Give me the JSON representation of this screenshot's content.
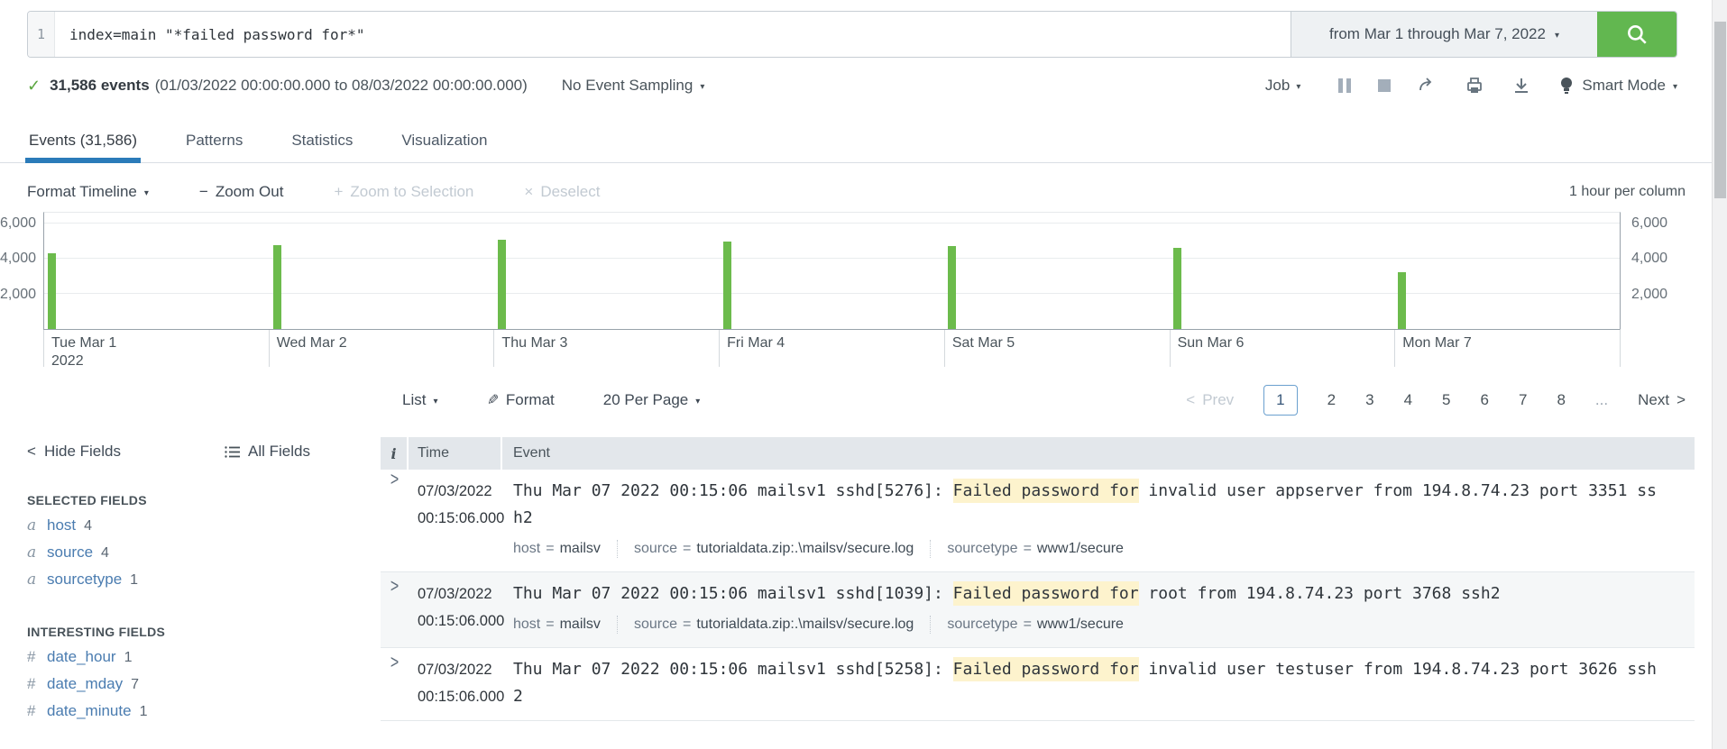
{
  "colors": {
    "green_button": "#62b750",
    "bar_green": "#6cbb4c",
    "tab_underline": "#2b7bb9",
    "link_blue": "#4a7cb0",
    "highlight_yellow": "#fdf3cd"
  },
  "icons": {
    "check": "✓",
    "caret_down": "▾",
    "chevron_left": "<",
    "chevron_right": ">",
    "minus": "−",
    "plus": "+",
    "x": "×",
    "pencil": "✎"
  },
  "search": {
    "line_number": "1",
    "query": "index=main \"*failed password for*\"",
    "time_range_label": "from Mar 1 through Mar 7, 2022"
  },
  "status_bar": {
    "event_count": "31,586 events",
    "time_span": "(01/03/2022 00:00:00.000 to 08/03/2022 00:00:00.000)",
    "sampling_label": "No Event Sampling",
    "job_label": "Job",
    "smart_mode_label": "Smart Mode"
  },
  "tabs": [
    {
      "label": "Events (31,586)",
      "active": true
    },
    {
      "label": "Patterns",
      "active": false
    },
    {
      "label": "Statistics",
      "active": false
    },
    {
      "label": "Visualization",
      "active": false
    }
  ],
  "timeline_controls": {
    "format_timeline": "Format Timeline",
    "zoom_out": "Zoom Out",
    "zoom_to_selection": "Zoom to Selection",
    "deselect": "Deselect",
    "column_scale": "1 hour per column"
  },
  "chart_data": {
    "type": "bar",
    "title": "Events timeline, 1 hour per column",
    "bar_color": "#6cbb4c",
    "ylim": [
      0,
      6610
    ],
    "grid": true,
    "yticks": [
      {
        "value": 2000,
        "label": "2,000"
      },
      {
        "value": 4000,
        "label": "4,000"
      },
      {
        "value": 6000,
        "label": "6,000"
      }
    ],
    "days": [
      {
        "label": "Tue Mar 1",
        "sublabel": "2022",
        "value": 4300
      },
      {
        "label": "Wed Mar 2",
        "value": 4750
      },
      {
        "label": "Thu Mar 3",
        "value": 5050
      },
      {
        "label": "Fri Mar 4",
        "value": 4950
      },
      {
        "label": "Sat Mar 5",
        "value": 4700
      },
      {
        "label": "Sun Mar 6",
        "value": 4600
      },
      {
        "label": "Mon Mar 7",
        "value": 3236
      }
    ]
  },
  "results_toolbar": {
    "list_label": "List",
    "format_label": "Format",
    "per_page_label": "20 Per Page"
  },
  "pagination": {
    "prev_label": "Prev",
    "next_label": "Next",
    "pages": [
      "1",
      "2",
      "3",
      "4",
      "5",
      "6",
      "7",
      "8"
    ],
    "ellipsis": "...",
    "active_page": "1"
  },
  "fields_panel": {
    "hide_fields_label": "Hide Fields",
    "all_fields_label": "All Fields",
    "selected_header": "SELECTED FIELDS",
    "selected": [
      {
        "glyph": "a",
        "name": "host",
        "count": "4"
      },
      {
        "glyph": "a",
        "name": "source",
        "count": "4"
      },
      {
        "glyph": "a",
        "name": "sourcetype",
        "count": "1"
      }
    ],
    "interesting_header": "INTERESTING FIELDS",
    "interesting": [
      {
        "glyph": "#",
        "name": "date_hour",
        "count": "1"
      },
      {
        "glyph": "#",
        "name": "date_mday",
        "count": "7"
      },
      {
        "glyph": "#",
        "name": "date_minute",
        "count": "1"
      }
    ]
  },
  "events_table": {
    "info_header": "i",
    "time_header": "Time",
    "event_header": "Event",
    "equals_sign": "=",
    "expand_glyph": ">",
    "rows": [
      {
        "date": "07/03/2022",
        "time": "00:15:06.000",
        "raw_pre": "Thu Mar 07 2022 00:15:06 mailsv1 sshd[5276]: ",
        "raw_highlight": "Failed password for",
        "raw_post": " invalid user appserver from 194.8.74.23 port 3351 ssh2",
        "fields": [
          {
            "key": "host",
            "value": "mailsv"
          },
          {
            "key": "source",
            "value": "tutorialdata.zip:.\\mailsv/secure.log"
          },
          {
            "key": "sourcetype",
            "value": "www1/secure"
          }
        ]
      },
      {
        "date": "07/03/2022",
        "time": "00:15:06.000",
        "raw_pre": "Thu Mar 07 2022 00:15:06 mailsv1 sshd[1039]: ",
        "raw_highlight": "Failed password for",
        "raw_post": " root from 194.8.74.23 port 3768 ssh2",
        "fields": [
          {
            "key": "host",
            "value": "mailsv"
          },
          {
            "key": "source",
            "value": "tutorialdata.zip:.\\mailsv/secure.log"
          },
          {
            "key": "sourcetype",
            "value": "www1/secure"
          }
        ]
      },
      {
        "date": "07/03/2022",
        "time": "00:15:06.000",
        "raw_pre": "Thu Mar 07 2022 00:15:06 mailsv1 sshd[5258]: ",
        "raw_highlight": "Failed password for",
        "raw_post": " invalid user testuser from 194.8.74.23 port 3626 ssh2",
        "fields": []
      }
    ]
  }
}
